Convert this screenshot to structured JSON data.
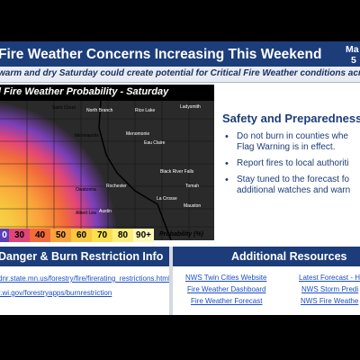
{
  "header": {
    "title": "Fire Weather Concerns Increasing This Weekend",
    "right_line1": "Ma",
    "right_line2": "5"
  },
  "subtitle": "warm and dry Saturday could create potential for Critical Fire Weather conditions acro",
  "map": {
    "title": "l Fire Weather Probability - Saturday",
    "places": [
      "Saint Cloud",
      "North Branch",
      "Rice Lake",
      "Ladysmith",
      "Minneapolis",
      "Menomonie",
      "Eau Claire",
      "Rochester",
      "Black River Falls",
      "La Crosse",
      "Tomah",
      "Owatonna",
      "Albert Lea",
      "Austin",
      "Mauston"
    ],
    "legend": {
      "values": [
        "0",
        "30",
        "40",
        "50",
        "60",
        "70",
        "80",
        "90+"
      ],
      "colors": [
        "#5b3fb8",
        "#e0457a",
        "#f26b3a",
        "#f8a33a",
        "#f7c840",
        "#f8e050",
        "#fbee7a",
        "#fdf9b8"
      ],
      "label": "Probability (%)"
    }
  },
  "safety": {
    "title": "Safety and Preparedness",
    "bullets": [
      [
        "Do not burn in counties whe",
        "Flag Warning is in effect."
      ],
      [
        "Report fires to local authoriti"
      ],
      [
        "Stay tuned to the forecast fo",
        "additional watches and warn"
      ]
    ]
  },
  "fire_danger": {
    "title": "Danger & Burn Restriction Info",
    "links": [
      "dnr.state.mn.us/forestry/fire/firerating_restrictions.html",
      "r.wi.gov/forestryapps/burnrestriction"
    ]
  },
  "resources": {
    "title": "Additional Resources",
    "links_left": [
      "NWS Twin Cities Website",
      "Fire Weather Dashboard",
      "Fire Weather Forecast"
    ],
    "links_right": [
      "Latest Forecast - H",
      "NWS Storm Predi",
      "NWS Fire Weathe"
    ]
  }
}
